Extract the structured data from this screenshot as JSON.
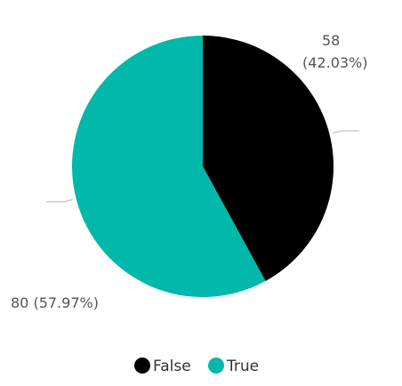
{
  "chart_data": {
    "type": "pie",
    "slices": [
      {
        "name": "False",
        "value": 58,
        "percent": 42.03,
        "color": "#000000",
        "label_line1": "58",
        "label_line2": "(42.03%)"
      },
      {
        "name": "True",
        "value": 80,
        "percent": 57.97,
        "color": "#01B8AA",
        "label_line1": "80 (57.97%)",
        "label_line2": ""
      }
    ],
    "legend": {
      "placement": "bottom",
      "items": [
        "False",
        "True"
      ]
    }
  },
  "colors": {
    "leader_line": "#b3b3b3",
    "label_text": "#555555"
  }
}
